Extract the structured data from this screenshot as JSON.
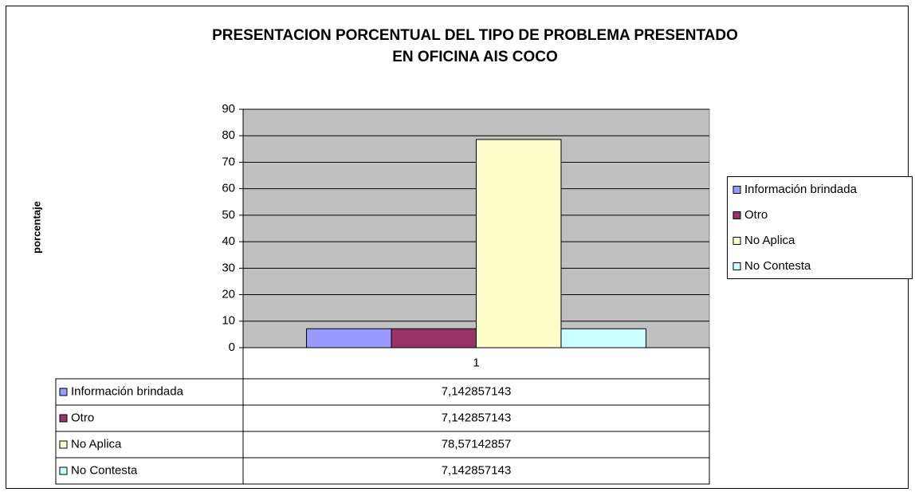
{
  "chart_data": {
    "type": "bar",
    "title": [
      "PRESENTACION PORCENTUAL DEL TIPO DE PROBLEMA PRESENTADO",
      "EN OFICINA AIS COCO"
    ],
    "ylabel": "porcentaje",
    "categories": [
      "1"
    ],
    "series": [
      {
        "name": "Información brindada",
        "color": "#9999ff",
        "values": [
          7.142857143
        ],
        "value_labels": [
          "7,142857143"
        ]
      },
      {
        "name": "Otro",
        "color": "#993366",
        "values": [
          7.142857143
        ],
        "value_labels": [
          "7,142857143"
        ]
      },
      {
        "name": "No Aplica",
        "color": "#ffffcc",
        "values": [
          78.57142857
        ],
        "value_labels": [
          "78,57142857"
        ]
      },
      {
        "name": "No Contesta",
        "color": "#ccffff",
        "values": [
          7.142857143
        ],
        "value_labels": [
          "7,142857143"
        ]
      }
    ],
    "ylim": [
      0,
      90
    ],
    "yticks": [
      0,
      10,
      20,
      30,
      40,
      50,
      60,
      70,
      80,
      90
    ],
    "grid": true,
    "legend": "right",
    "plot_background": "#c0c0c0"
  }
}
